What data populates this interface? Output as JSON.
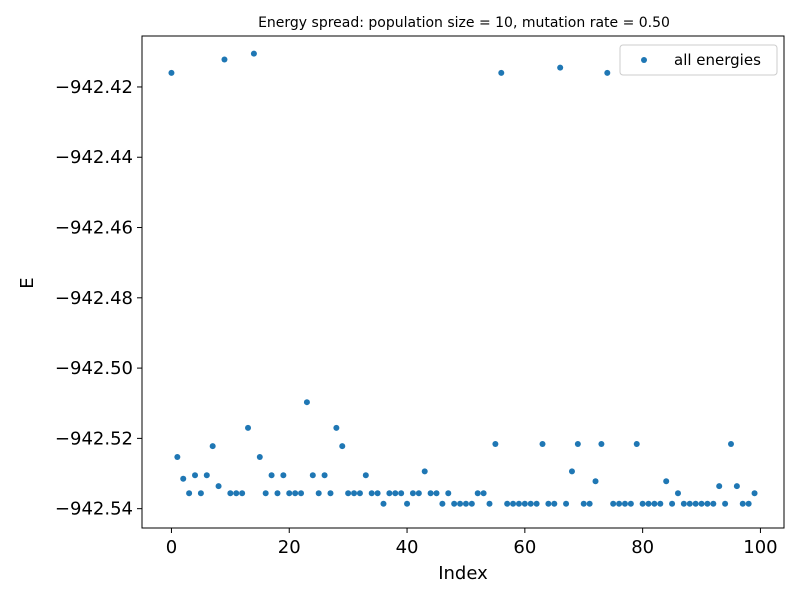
{
  "chart_data": {
    "type": "scatter",
    "title": "Energy spread: population size = 10, mutation rate = 0.50",
    "xlabel": "Index",
    "ylabel": "E",
    "xlim": [
      -5,
      104
    ],
    "ylim": [
      -942.5455,
      -942.4055
    ],
    "xticks": [
      0,
      20,
      40,
      60,
      80,
      100
    ],
    "yticks": [
      -942.54,
      -942.52,
      -942.5,
      -942.48,
      -942.46,
      -942.44,
      -942.42
    ],
    "ytick_labels": [
      "−942.54",
      "−942.52",
      "−942.50",
      "−942.48",
      "−942.46",
      "−942.44",
      "−942.42"
    ],
    "grid": false,
    "legend_position": "top-right",
    "series": [
      {
        "name": "all energies",
        "color": "#1f77b4",
        "x": [
          0,
          1,
          2,
          3,
          4,
          5,
          6,
          7,
          8,
          9,
          10,
          11,
          12,
          13,
          14,
          15,
          16,
          17,
          18,
          19,
          20,
          21,
          22,
          23,
          24,
          25,
          26,
          27,
          28,
          29,
          30,
          31,
          32,
          33,
          34,
          35,
          36,
          37,
          38,
          39,
          40,
          41,
          42,
          43,
          44,
          45,
          46,
          47,
          48,
          49,
          50,
          51,
          52,
          53,
          54,
          55,
          56,
          57,
          58,
          59,
          60,
          61,
          62,
          63,
          64,
          65,
          66,
          67,
          68,
          69,
          70,
          71,
          72,
          73,
          74,
          75,
          76,
          77,
          78,
          79,
          80,
          81,
          82,
          83,
          84,
          85,
          86,
          87,
          88,
          89,
          90,
          91,
          92,
          93,
          94,
          95,
          96,
          97,
          98,
          99
        ],
        "y": [
          -942.416,
          -942.5253,
          -942.5315,
          -942.5356,
          -942.5305,
          -942.5356,
          -942.5305,
          -942.5222,
          -942.5336,
          -942.4122,
          -942.5356,
          -942.5356,
          -942.5356,
          -942.517,
          -942.4105,
          -942.5253,
          -942.5356,
          -942.5305,
          -942.5356,
          -942.5305,
          -942.5356,
          -942.5356,
          -942.5356,
          -942.5097,
          -942.5305,
          -942.5356,
          -942.5305,
          -942.5356,
          -942.517,
          -942.5222,
          -942.5356,
          -942.5356,
          -942.5356,
          -942.5305,
          -942.5356,
          -942.5356,
          -942.5386,
          -942.5356,
          -942.5356,
          -942.5356,
          -942.5386,
          -942.5356,
          -942.5356,
          -942.5294,
          -942.5356,
          -942.5356,
          -942.5386,
          -942.5356,
          -942.5386,
          -942.5386,
          -942.5386,
          -942.5386,
          -942.5356,
          -942.5356,
          -942.5386,
          -942.5216,
          -942.416,
          -942.5386,
          -942.5386,
          -942.5386,
          -942.5386,
          -942.5386,
          -942.5386,
          -942.5216,
          -942.5386,
          -942.5386,
          -942.4145,
          -942.5386,
          -942.5294,
          -942.5216,
          -942.5386,
          -942.5386,
          -942.5322,
          -942.5216,
          -942.416,
          -942.5386,
          -942.5386,
          -942.5386,
          -942.5386,
          -942.5216,
          -942.5386,
          -942.5386,
          -942.5386,
          -942.5386,
          -942.5322,
          -942.5386,
          -942.5356,
          -942.5386,
          -942.5386,
          -942.5386,
          -942.5386,
          -942.5386,
          -942.5386,
          -942.5336,
          -942.5386,
          -942.5216,
          -942.5336,
          -942.5386,
          -942.5386,
          -942.5356
        ]
      }
    ]
  }
}
